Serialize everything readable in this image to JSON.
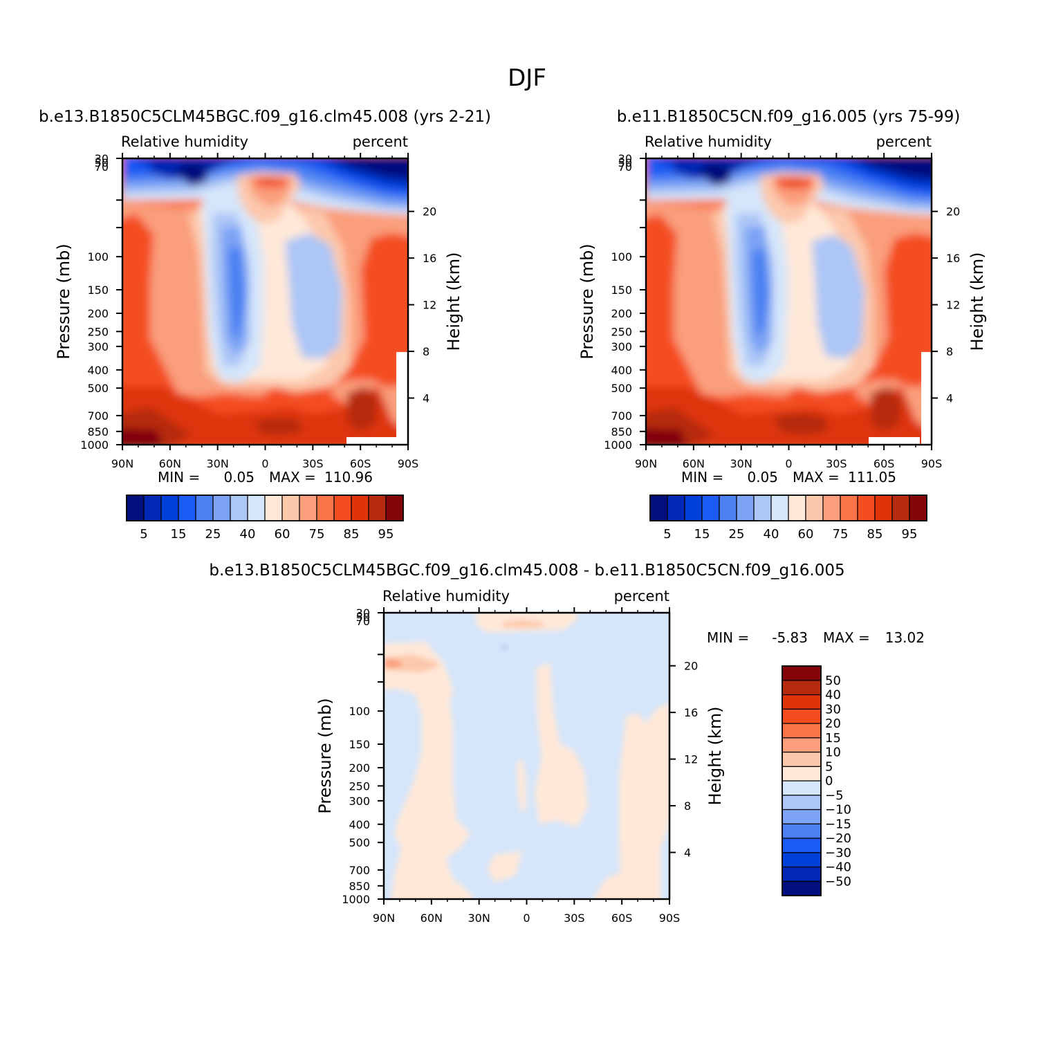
{
  "figure": {
    "title": "DJF"
  },
  "colors": {
    "abs_scale": [
      "#000e7e",
      "#0028b4",
      "#0040d8",
      "#1c5af4",
      "#4a80f2",
      "#7ca3f4",
      "#acc6f6",
      "#d6e6fa",
      "#ffe8d8",
      "#fcc8ac",
      "#fa9e7c",
      "#fa7448",
      "#f44e20",
      "#de3408",
      "#b62a0e",
      "#820408"
    ],
    "diff_scale": [
      "#000e7e",
      "#0028b4",
      "#0040d8",
      "#1c5af4",
      "#4a80f2",
      "#7ca3f4",
      "#acc6f6",
      "#d6e6fa",
      "#ffe8d8",
      "#fcc8ac",
      "#fa9e7c",
      "#fa7448",
      "#f44e20",
      "#de3408",
      "#b62a0e",
      "#820408"
    ]
  },
  "chart_data": [
    {
      "type": "heatmap",
      "title": "b.e13.B1850C5CLM45BGC.f09_g16.clm45.008 (yrs 2-21)",
      "left_label": "Relative humidity",
      "right_label": "percent",
      "ylabel": "Pressure (mb)",
      "ylabel_right": "Height (km)",
      "x_ticks": [
        "90N",
        "60N",
        "30N",
        "0",
        "30S",
        "60S",
        "90S"
      ],
      "y_ticks": [
        "30",
        "50",
        "70",
        "100",
        "150",
        "200",
        "250",
        "300",
        "400",
        "500",
        "700",
        "850",
        "1000"
      ],
      "y_ticks_right": [
        "20",
        "16",
        "12",
        "8",
        "4"
      ],
      "min_label": "MIN =",
      "min_value": "0.05",
      "max_label": "MAX =",
      "max_value": "110.96",
      "colorbar_labels": [
        "5",
        "15",
        "25",
        "40",
        "60",
        "75",
        "85",
        "95"
      ]
    },
    {
      "type": "heatmap",
      "title": "b.e11.B1850C5CN.f09_g16.005 (yrs 75-99)",
      "left_label": "Relative humidity",
      "right_label": "percent",
      "ylabel": "Pressure (mb)",
      "ylabel_right": "Height (km)",
      "x_ticks": [
        "90N",
        "60N",
        "30N",
        "0",
        "30S",
        "60S",
        "90S"
      ],
      "y_ticks": [
        "30",
        "50",
        "70",
        "100",
        "150",
        "200",
        "250",
        "300",
        "400",
        "500",
        "700",
        "850",
        "1000"
      ],
      "y_ticks_right": [
        "20",
        "16",
        "12",
        "8",
        "4"
      ],
      "min_label": "MIN =",
      "min_value": "0.05",
      "max_label": "MAX =",
      "max_value": "111.05",
      "colorbar_labels": [
        "5",
        "15",
        "25",
        "40",
        "60",
        "75",
        "85",
        "95"
      ]
    },
    {
      "type": "heatmap",
      "title": "b.e13.B1850C5CLM45BGC.f09_g16.clm45.008 - b.e11.B1850C5CN.f09_g16.005",
      "left_label": "Relative humidity",
      "right_label": "percent",
      "ylabel": "Pressure (mb)",
      "ylabel_right": "Height (km)",
      "x_ticks": [
        "90N",
        "60N",
        "30N",
        "0",
        "30S",
        "60S",
        "90S"
      ],
      "y_ticks": [
        "30",
        "50",
        "70",
        "100",
        "150",
        "200",
        "250",
        "300",
        "400",
        "500",
        "700",
        "850",
        "1000"
      ],
      "y_ticks_right": [
        "20",
        "16",
        "12",
        "8",
        "4"
      ],
      "min_label": "MIN =",
      "min_value": "-5.83",
      "max_label": "MAX =",
      "max_value": "13.02",
      "colorbar_labels": [
        "50",
        "40",
        "30",
        "20",
        "15",
        "10",
        "5",
        "0",
        "-5",
        "-10",
        "-15",
        "-20",
        "-30",
        "-40",
        "-50"
      ]
    }
  ]
}
